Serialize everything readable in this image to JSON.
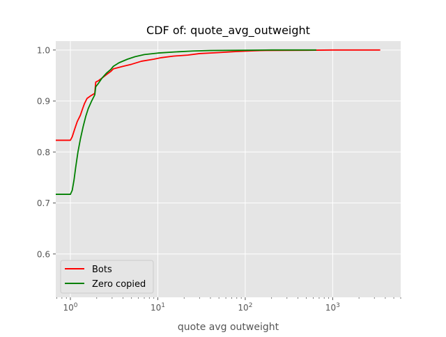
{
  "chart_data": {
    "type": "line",
    "title": "CDF of: quote_avg_outweight",
    "xlabel": "quote avg outweight",
    "ylabel": "",
    "xscale": "log",
    "xlim": [
      0.68,
      6000
    ],
    "ylim": [
      0.515,
      1.0175
    ],
    "x_ticks": [
      {
        "value": 1,
        "base": "10",
        "exp": "0"
      },
      {
        "value": 10,
        "base": "10",
        "exp": "1"
      },
      {
        "value": 100,
        "base": "10",
        "exp": "2"
      },
      {
        "value": 1000,
        "base": "10",
        "exp": "3"
      }
    ],
    "y_ticks": [
      {
        "value": 0.6,
        "label": "0.6"
      },
      {
        "value": 0.7,
        "label": "0.7"
      },
      {
        "value": 0.8,
        "label": "0.8"
      },
      {
        "value": 0.9,
        "label": "0.9"
      },
      {
        "value": 1.0,
        "label": "1.0"
      }
    ],
    "grid": true,
    "legend_position": "lower-left",
    "style": {
      "background": "#e5e5e5",
      "grid_color": "#ffffff",
      "text_color": "#555555"
    },
    "series": [
      {
        "name": "Bots",
        "color": "#ff0000",
        "points": [
          [
            0.68,
            0.823
          ],
          [
            1.0,
            0.823
          ],
          [
            1.05,
            0.83
          ],
          [
            1.12,
            0.845
          ],
          [
            1.2,
            0.86
          ],
          [
            1.3,
            0.872
          ],
          [
            1.38,
            0.885
          ],
          [
            1.45,
            0.895
          ],
          [
            1.55,
            0.905
          ],
          [
            1.7,
            0.91
          ],
          [
            1.9,
            0.915
          ],
          [
            1.95,
            0.937
          ],
          [
            2.1,
            0.94
          ],
          [
            2.3,
            0.945
          ],
          [
            2.6,
            0.952
          ],
          [
            2.9,
            0.958
          ],
          [
            3.1,
            0.963
          ],
          [
            4.0,
            0.968
          ],
          [
            5.0,
            0.972
          ],
          [
            6.5,
            0.978
          ],
          [
            9.0,
            0.982
          ],
          [
            11.0,
            0.985
          ],
          [
            15.0,
            0.988
          ],
          [
            22.0,
            0.99
          ],
          [
            30.0,
            0.993
          ],
          [
            50.0,
            0.995
          ],
          [
            80.0,
            0.997
          ],
          [
            110.0,
            0.998
          ],
          [
            150.0,
            0.999
          ],
          [
            500.0,
            0.9995
          ],
          [
            1000.0,
            1.0
          ],
          [
            3500.0,
            1.0
          ]
        ]
      },
      {
        "name": "Zero copied",
        "color": "#008000",
        "points": [
          [
            0.68,
            0.717
          ],
          [
            1.0,
            0.717
          ],
          [
            1.05,
            0.725
          ],
          [
            1.1,
            0.745
          ],
          [
            1.15,
            0.77
          ],
          [
            1.22,
            0.8
          ],
          [
            1.3,
            0.825
          ],
          [
            1.4,
            0.85
          ],
          [
            1.5,
            0.87
          ],
          [
            1.6,
            0.885
          ],
          [
            1.75,
            0.9
          ],
          [
            1.9,
            0.912
          ],
          [
            1.95,
            0.928
          ],
          [
            2.1,
            0.935
          ],
          [
            2.3,
            0.945
          ],
          [
            2.6,
            0.955
          ],
          [
            2.9,
            0.962
          ],
          [
            3.1,
            0.968
          ],
          [
            3.6,
            0.975
          ],
          [
            4.5,
            0.982
          ],
          [
            5.5,
            0.987
          ],
          [
            7.0,
            0.991
          ],
          [
            10.0,
            0.994
          ],
          [
            15.0,
            0.996
          ],
          [
            25.0,
            0.998
          ],
          [
            40.0,
            0.999
          ],
          [
            100.0,
            0.9995
          ],
          [
            200.0,
            1.0
          ],
          [
            650.0,
            1.0
          ]
        ]
      }
    ]
  }
}
